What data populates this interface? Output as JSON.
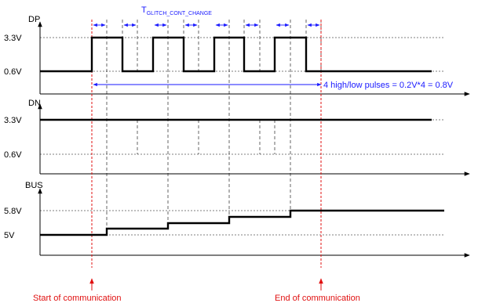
{
  "signals": {
    "dp": {
      "name": "DP",
      "levels": [
        "3.3V",
        "0.6V"
      ]
    },
    "dn": {
      "name": "DN",
      "levels": [
        "3.3V",
        "0.6V"
      ]
    },
    "bus": {
      "name": "BUS",
      "levels": [
        "5.8V",
        "5V"
      ]
    }
  },
  "annotations": {
    "t_glitch": "T",
    "t_glitch_sub": "GLITCH_CONT_CHANGE",
    "pulses_note": "4 high/low pulses = 0.2V*4 = 0.8V",
    "start": "Start of communication",
    "end": "End of communication"
  },
  "colors": {
    "signal": "#000000",
    "annotation": "#1a1aff",
    "marker": "#e01010",
    "guide": "#000000"
  }
}
